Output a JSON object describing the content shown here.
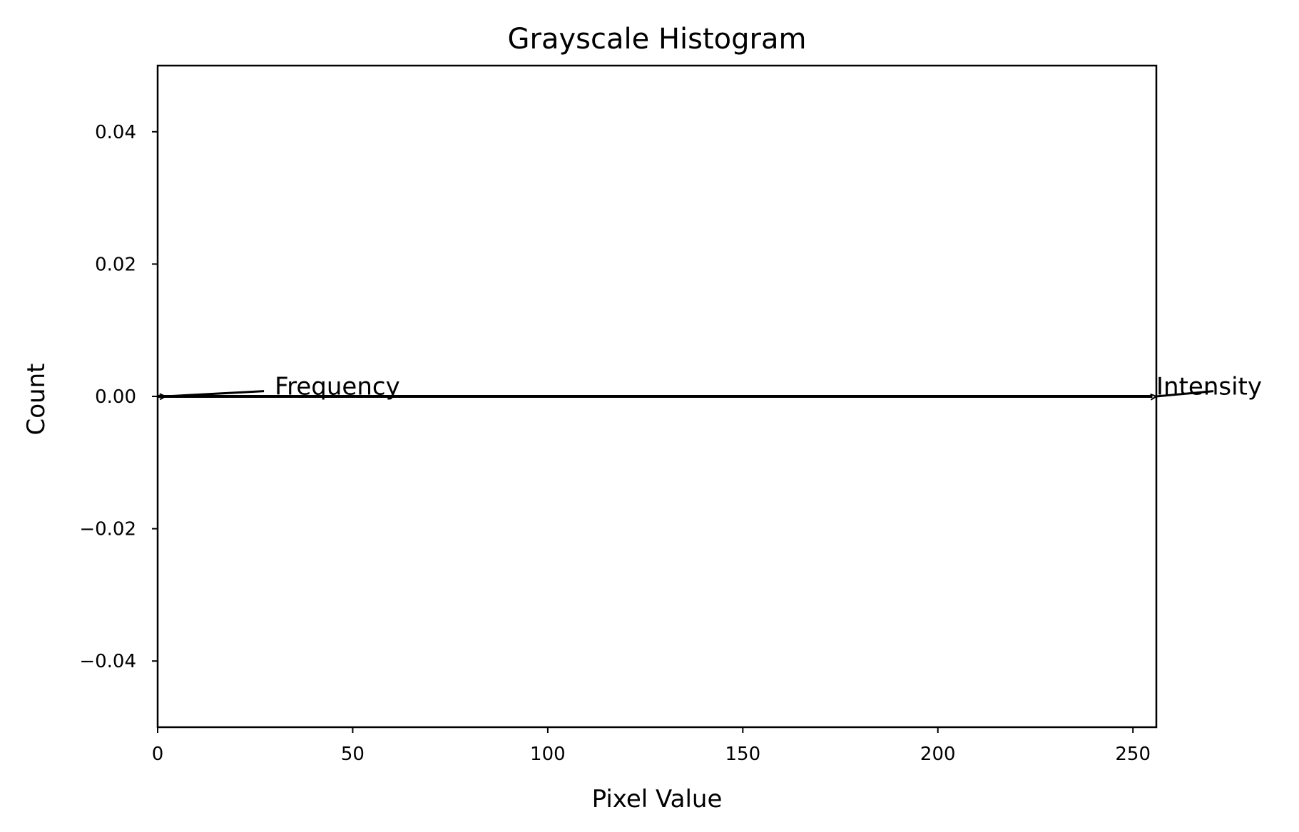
{
  "chart_data": {
    "type": "line",
    "title": "Grayscale Histogram",
    "xlabel": "Pixel Value",
    "ylabel": "Count",
    "xlim": [
      0,
      256
    ],
    "ylim": [
      -0.05,
      0.05
    ],
    "x_ticks": [
      0,
      50,
      100,
      150,
      200,
      250
    ],
    "x_tick_labels": [
      "0",
      "50",
      "100",
      "150",
      "200",
      "250"
    ],
    "y_ticks": [
      0.04,
      0.02,
      0.0,
      -0.02,
      -0.04
    ],
    "y_tick_labels": [
      "0.04",
      "0.02",
      "0.00",
      "−0.02",
      "−0.04"
    ],
    "grid": false,
    "series": [
      {
        "color": "#000000",
        "x": [
          0,
          255
        ],
        "y": [
          0,
          0
        ]
      }
    ],
    "annotations": [
      {
        "text": "Frequency",
        "point": [
          2,
          0
        ],
        "text_at": [
          30,
          0.0008
        ],
        "color": "#000000"
      },
      {
        "text": "Intensity",
        "point": [
          256,
          0
        ],
        "text_at": [
          256,
          0.0008
        ],
        "color": "#000000"
      }
    ]
  }
}
